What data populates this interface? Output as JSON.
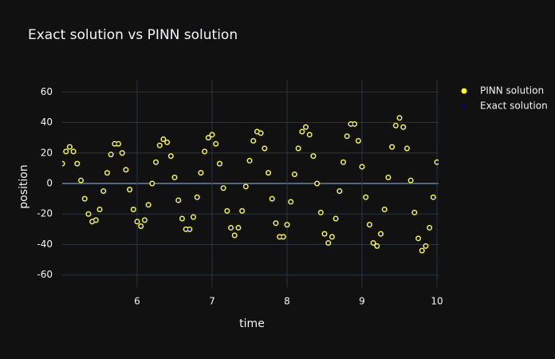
{
  "chart_data": {
    "type": "scatter",
    "title": "Exact solution vs PINN solution",
    "x_label": "time",
    "y_label": "position",
    "x": [
      5,
      5.05,
      5.1,
      5.15,
      5.2,
      5.25,
      5.3,
      5.35,
      5.4,
      5.45,
      5.5,
      5.55,
      5.6,
      5.65,
      5.7,
      5.75,
      5.8,
      5.85,
      5.9,
      5.95,
      6,
      6.05,
      6.1,
      6.15,
      6.2,
      6.25,
      6.3,
      6.35,
      6.4,
      6.45,
      6.5,
      6.55,
      6.6,
      6.65,
      6.7,
      6.75,
      6.8,
      6.85,
      6.9,
      6.95,
      7,
      7.05,
      7.1,
      7.15,
      7.2,
      7.25,
      7.3,
      7.35,
      7.4,
      7.45,
      7.5,
      7.55,
      7.6,
      7.65,
      7.7,
      7.75,
      7.8,
      7.85,
      7.9,
      7.95,
      8,
      8.05,
      8.1,
      8.15,
      8.2,
      8.25,
      8.3,
      8.35,
      8.4,
      8.45,
      8.5,
      8.55,
      8.6,
      8.65,
      8.7,
      8.75,
      8.8,
      8.85,
      8.9,
      8.95,
      9,
      9.05,
      9.1,
      9.15,
      9.2,
      9.25,
      9.3,
      9.35,
      9.4,
      9.45,
      9.5,
      9.55,
      9.6,
      9.65,
      9.7,
      9.75,
      9.8,
      9.85,
      9.9,
      9.95,
      10
    ],
    "series": [
      {
        "name": "PINN solution",
        "color": "#ffff00",
        "values": [
          13,
          21,
          24,
          21,
          13,
          2,
          -10,
          -20,
          -25,
          -24,
          -17,
          -5,
          7,
          19,
          26,
          26,
          20,
          9,
          -4,
          -17,
          -25,
          -28,
          -24,
          -14,
          0,
          14,
          25,
          29,
          27,
          18,
          4,
          -11,
          -23,
          -30,
          -30,
          -22,
          -9,
          7,
          21,
          30,
          32,
          26,
          13,
          -3,
          -18,
          -29,
          -34,
          -29,
          -18,
          -2,
          15,
          28,
          34,
          33,
          23,
          7,
          -10,
          -26,
          -35,
          -35,
          -27,
          -12,
          6,
          23,
          34,
          37,
          32,
          18,
          0,
          -19,
          -33,
          -39,
          -35,
          -23,
          -5,
          14,
          31,
          39,
          39,
          28,
          11,
          -9,
          -27,
          -39,
          -41,
          -33,
          -17,
          4,
          24,
          38,
          43,
          37,
          23,
          2,
          -19,
          -36,
          -44,
          -41,
          -29,
          -9,
          14
        ]
      },
      {
        "name": "Exact solution",
        "color": "#00008b",
        "values": [
          13,
          21,
          24,
          21,
          13,
          2,
          -10,
          -20,
          -25,
          -24,
          -17,
          -5,
          7,
          19,
          26,
          26,
          20,
          9,
          -4,
          -17,
          -25,
          -28,
          -24,
          -14,
          0,
          14,
          25,
          29,
          27,
          18,
          4,
          -11,
          -23,
          -30,
          -30,
          -22,
          -9,
          7,
          21,
          30,
          32,
          26,
          13,
          -3,
          -18,
          -29,
          -34,
          -29,
          -18,
          -2,
          15,
          28,
          34,
          33,
          23,
          7,
          -10,
          -26,
          -35,
          -35,
          -27,
          -12,
          6,
          23,
          34,
          37,
          32,
          18,
          0,
          -19,
          -33,
          -39,
          -35,
          -23,
          -5,
          14,
          31,
          39,
          39,
          28,
          11,
          -9,
          -27,
          -39,
          -41,
          -33,
          -17,
          4,
          24,
          38,
          43,
          37,
          23,
          2,
          -19,
          -36,
          -44,
          -41,
          -29,
          -9,
          14
        ]
      }
    ],
    "xlim": [
      5,
      10
    ],
    "ylim": [
      -68,
      68
    ],
    "xticks": [
      6,
      7,
      8,
      9,
      10
    ],
    "yticks": [
      -60,
      -40,
      -20,
      0,
      20,
      40,
      60
    ],
    "grid": true,
    "legend": "right"
  }
}
